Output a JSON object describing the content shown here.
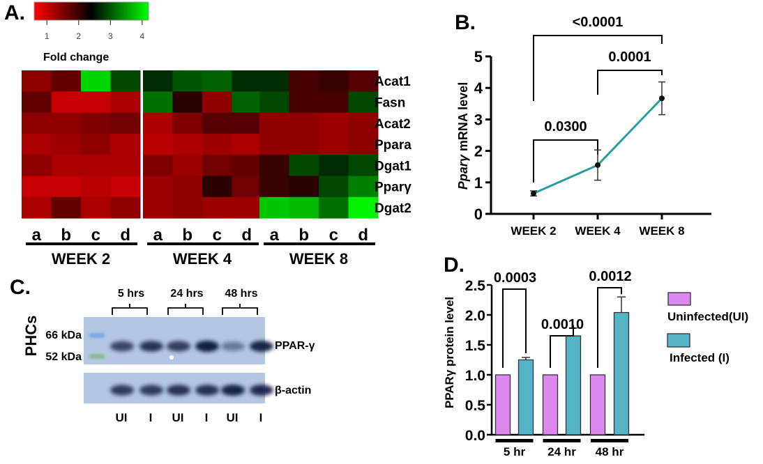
{
  "panels": {
    "A": "A.",
    "B": "B.",
    "C": "C.",
    "D": "D."
  },
  "chart_data": [
    {
      "panel": "A",
      "type": "heatmap",
      "title": "",
      "colorbar": {
        "label": "Fold change",
        "ticks": [
          "1",
          "2",
          "3",
          "4"
        ],
        "range": [
          0.6,
          4.2
        ],
        "colors": [
          "#ff0000",
          "#000000",
          "#00ff00"
        ]
      },
      "rows": [
        "Acat1",
        "Fasn",
        "Acat2",
        "Ppara",
        "Dgat1",
        "Ppary",
        "Dgat2"
      ],
      "row_labels_display": [
        "Acat1",
        "Fasn",
        "Acat2",
        "Ppara",
        "Dgat1",
        "Pparγ",
        "Dgat2"
      ],
      "groups": [
        {
          "label": "WEEK 2",
          "columns": [
            "a",
            "b",
            "c",
            "d"
          ]
        },
        {
          "label": "WEEK 4",
          "columns": [
            "a",
            "b",
            "c",
            "d"
          ]
        },
        {
          "label": "WEEK 8",
          "columns": [
            "a",
            "b",
            "c",
            "d"
          ]
        }
      ],
      "values": [
        [
          1.4,
          1.7,
          3.9,
          2.9,
          2.7,
          3.0,
          3.1,
          2.7,
          2.7,
          1.9,
          2.0,
          1.8
        ],
        [
          1.7,
          1.0,
          1.0,
          1.2,
          3.2,
          2.1,
          1.4,
          3.1,
          2.9,
          1.9,
          1.9,
          2.9
        ],
        [
          1.4,
          1.4,
          1.5,
          1.6,
          1.2,
          1.5,
          1.8,
          1.8,
          1.4,
          1.4,
          1.3,
          1.4
        ],
        [
          1.2,
          1.3,
          1.4,
          1.2,
          1.1,
          1.2,
          1.3,
          1.2,
          1.4,
          1.4,
          1.3,
          1.4
        ],
        [
          1.4,
          1.2,
          1.2,
          1.2,
          1.5,
          1.3,
          1.6,
          1.7,
          2.0,
          2.9,
          2.7,
          2.9
        ],
        [
          1.0,
          1.0,
          1.1,
          1.0,
          1.3,
          1.4,
          2.1,
          1.6,
          2.0,
          2.1,
          2.9,
          3.3
        ],
        [
          1.2,
          1.7,
          1.2,
          1.4,
          1.3,
          1.4,
          1.3,
          1.3,
          3.8,
          3.7,
          3.2,
          4.1
        ]
      ]
    },
    {
      "panel": "B",
      "type": "line",
      "title": "",
      "xlabel": "",
      "ylabel_italic": "Pparγ",
      "ylabel_rest": " mRNA level",
      "categories": [
        "WEEK 2",
        "WEEK 4",
        "WEEK 8"
      ],
      "values": [
        0.65,
        1.55,
        3.67
      ],
      "errors": [
        0.08,
        0.48,
        0.52
      ],
      "ylim": [
        0,
        5
      ],
      "yticks": [
        "0",
        "1",
        "2",
        "3",
        "4",
        "5"
      ],
      "line_color": "#2a9d9e",
      "comparisons": [
        {
          "from": 0,
          "to": 1,
          "label": "0.0300"
        },
        {
          "from": 1,
          "to": 2,
          "label": "0.0001"
        },
        {
          "from": 0,
          "to": 2,
          "label": "<0.0001"
        }
      ]
    },
    {
      "panel": "C",
      "type": "table",
      "title": "Western blot",
      "side_label": "PHCs",
      "markers": [
        "66 kDa",
        "52 kDa"
      ],
      "time_groups": [
        "5 hrs",
        "24 hrs",
        "48 hrs"
      ],
      "lanes": [
        "UI",
        "I",
        "UI",
        "I",
        "UI",
        "I"
      ],
      "blots": [
        {
          "label": "PPAR-γ",
          "band_intensity": [
            0.75,
            0.85,
            0.8,
            0.98,
            0.45,
            0.95
          ]
        },
        {
          "label": "β-actin",
          "band_intensity": [
            0.8,
            0.8,
            0.85,
            0.85,
            0.95,
            0.9
          ]
        }
      ]
    },
    {
      "panel": "D",
      "type": "bar",
      "title": "",
      "xlabel": "",
      "ylabel": "PPARγ protein level",
      "categories": [
        "5 hr",
        "24 hr",
        "48 hr"
      ],
      "ylim": [
        0,
        2.5
      ],
      "yticks": [
        "0.0",
        "0.5",
        "1.0",
        "1.5",
        "2.0",
        "2.5"
      ],
      "series": [
        {
          "name": "Uninfected(UI)",
          "color": "#dd88f0",
          "values": [
            1.0,
            1.0,
            1.0
          ],
          "errors": [
            0,
            0,
            0
          ]
        },
        {
          "name": "Infected (I)",
          "color": "#55b4c6",
          "values": [
            1.25,
            1.65,
            2.04
          ],
          "errors": [
            0.04,
            0.13,
            0.26
          ]
        }
      ],
      "comparisons": [
        "0.0003",
        "0.0010",
        "0.0012"
      ],
      "legend": "right"
    }
  ]
}
